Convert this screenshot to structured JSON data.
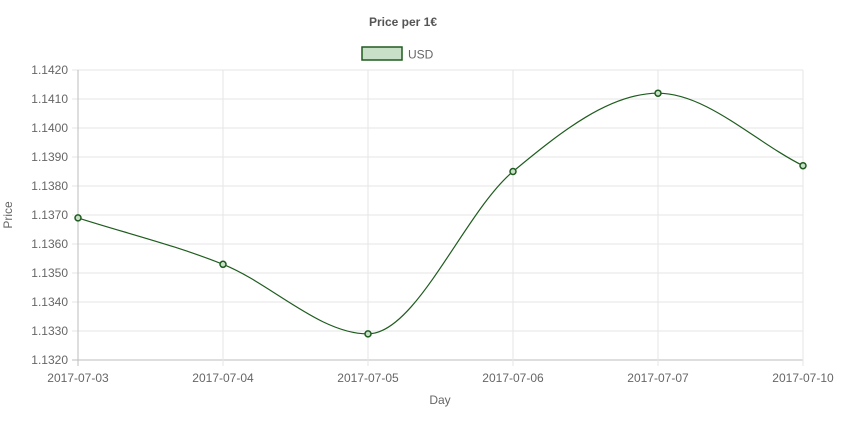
{
  "chart_data": {
    "type": "line",
    "title": "Price per 1€",
    "xlabel": "Day",
    "ylabel": "Price",
    "categories": [
      "2017-07-03",
      "2017-07-04",
      "2017-07-05",
      "2017-07-06",
      "2017-07-07",
      "2017-07-10"
    ],
    "series": [
      {
        "name": "USD",
        "values": [
          1.1369,
          1.1353,
          1.1329,
          1.1385,
          1.1412,
          1.1387
        ],
        "line_color": "#1e5c1e",
        "fill_color": "#c8e0c8"
      }
    ],
    "ylim": [
      1.132,
      1.142
    ],
    "yticks": [
      "1.1420",
      "1.1410",
      "1.1400",
      "1.1390",
      "1.1380",
      "1.1370",
      "1.1360",
      "1.1350",
      "1.1340",
      "1.1330",
      "1.1320"
    ],
    "grid": true,
    "legend_position": "top-center",
    "colors": {
      "grid": "#e6e6e6",
      "axis": "#bdbdbd",
      "text": "#666666",
      "title": "#555555"
    }
  }
}
